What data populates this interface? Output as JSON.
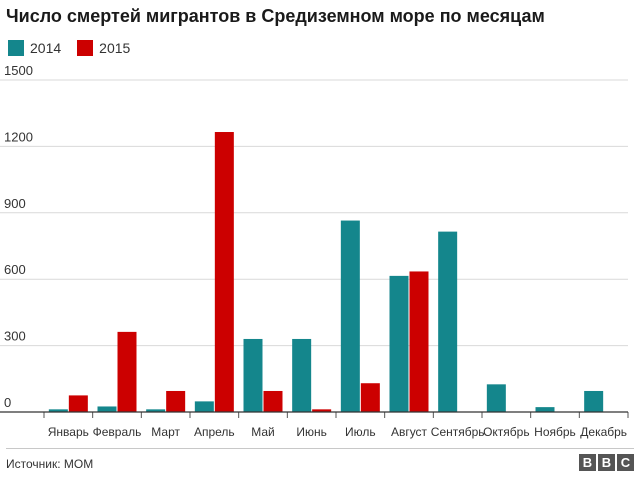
{
  "title": "Число смертей мигрантов в Средиземном море по месяцам",
  "source": "Источник: МОМ",
  "logo": [
    "B",
    "B",
    "C"
  ],
  "colors": {
    "2014": "#14868c",
    "2015": "#cc0000"
  },
  "chart_data": {
    "type": "bar",
    "title": "Число смертей мигрантов в Средиземном море по месяцам",
    "categories": [
      "Январь",
      "Февраль",
      "Март",
      "Апрель",
      "Май",
      "Июнь",
      "Июль",
      "Август",
      "Сентябрь",
      "Октябрь",
      "Ноябрь",
      "Декабрь"
    ],
    "series": [
      {
        "name": "2014",
        "color": "#14868c",
        "values": [
          12,
          25,
          12,
          48,
          330,
          330,
          865,
          615,
          815,
          125,
          22,
          95
        ]
      },
      {
        "name": "2015",
        "color": "#cc0000",
        "values": [
          75,
          362,
          95,
          1265,
          95,
          12,
          130,
          635,
          0,
          0,
          0,
          0
        ]
      }
    ],
    "ylim": [
      0,
      1500
    ],
    "yticks": [
      0,
      300,
      600,
      900,
      1200,
      1500
    ],
    "ytick_labels": [
      "0",
      "300",
      "600",
      "900",
      "1200",
      "1500"
    ],
    "grid": true,
    "legend": "top-left"
  }
}
